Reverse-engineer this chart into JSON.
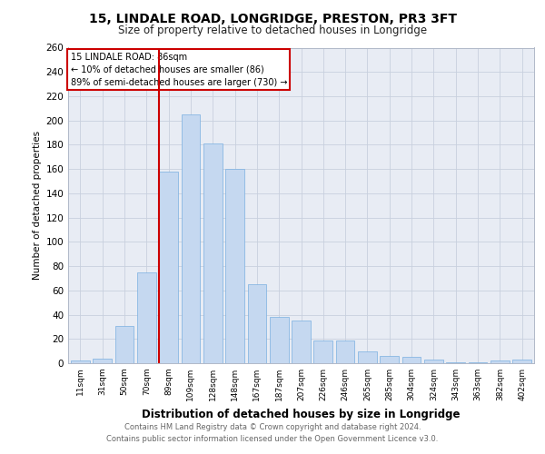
{
  "title1": "15, LINDALE ROAD, LONGRIDGE, PRESTON, PR3 3FT",
  "title2": "Size of property relative to detached houses in Longridge",
  "xlabel": "Distribution of detached houses by size in Longridge",
  "ylabel": "Number of detached properties",
  "categories": [
    "11sqm",
    "31sqm",
    "50sqm",
    "70sqm",
    "89sqm",
    "109sqm",
    "128sqm",
    "148sqm",
    "167sqm",
    "187sqm",
    "207sqm",
    "226sqm",
    "246sqm",
    "265sqm",
    "285sqm",
    "304sqm",
    "324sqm",
    "343sqm",
    "363sqm",
    "382sqm",
    "402sqm"
  ],
  "values": [
    2,
    4,
    31,
    75,
    158,
    205,
    181,
    160,
    65,
    38,
    35,
    19,
    19,
    10,
    6,
    5,
    3,
    1,
    1,
    2,
    3
  ],
  "bar_color": "#c5d8f0",
  "bar_edge_color": "#7aafe0",
  "highlight_index": 4,
  "highlight_line_color": "#cc0000",
  "annotation_title": "15 LINDALE ROAD: 86sqm",
  "annotation_line1": "← 10% of detached houses are smaller (86)",
  "annotation_line2": "89% of semi-detached houses are larger (730) →",
  "annotation_box_color": "#ffffff",
  "annotation_box_edge": "#cc0000",
  "ylim": [
    0,
    260
  ],
  "yticks": [
    0,
    20,
    40,
    60,
    80,
    100,
    120,
    140,
    160,
    180,
    200,
    220,
    240,
    260
  ],
  "grid_color": "#c8d0de",
  "bg_color": "#e8ecf4",
  "footer1": "Contains HM Land Registry data © Crown copyright and database right 2024.",
  "footer2": "Contains public sector information licensed under the Open Government Licence v3.0."
}
